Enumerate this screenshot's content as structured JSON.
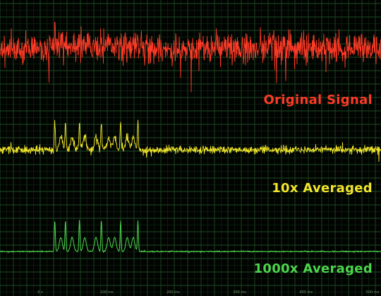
{
  "colors": {
    "background": "#020402",
    "grid_major": "#1f4a24",
    "grid_minor": "#123016",
    "original": "#ff3a26",
    "averaged_10x": "#f2e62a",
    "averaged_1000x": "#4cd64c"
  },
  "labels": {
    "original": "Original Signal",
    "averaged_10x": "10x Averaged",
    "averaged_1000x": "1000x Averaged"
  },
  "time_axis": {
    "ticks": [
      "0 s",
      "100 ms",
      "200 ms",
      "300 ms",
      "400 ms",
      "500 ms"
    ]
  },
  "pulse_train": {
    "sharp_spike_times_ms": [
      22,
      38,
      59,
      92,
      121,
      147
    ],
    "broad_bump_times_ms": [
      31,
      48,
      67,
      84,
      103,
      112,
      131,
      140
    ],
    "burst_end_ms": 180,
    "record_length_ms": 500
  },
  "traces": [
    {
      "key": "original",
      "noise_amplitude": 1.0
    },
    {
      "key": "averaged_10x",
      "noise_amplitude": 0.32
    },
    {
      "key": "averaged_1000x",
      "noise_amplitude": 0.03
    }
  ]
}
